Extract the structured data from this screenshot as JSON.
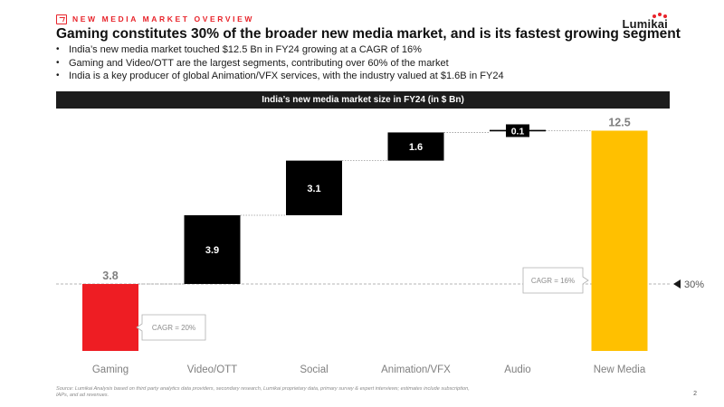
{
  "header": {
    "eyebrow": "NEW MEDIA MARKET OVERVIEW",
    "logo": "Lumikai",
    "title": "Gaming constitutes 30% of the broader new media market, and is its fastest growing segment",
    "bullets": [
      "India’s new media market touched $12.5 Bn in FY24 growing at a CAGR of 16%",
      "Gaming and Video/OTT are the largest segments, contributing over 60% of the market",
      "India is a key producer of global Animation/VFX services, with the industry valued at $1.6B in FY24"
    ]
  },
  "chart_data": {
    "type": "bar",
    "subtype": "waterfall",
    "title": "India’s new media market size in FY24 (in $ Bn)",
    "categories": [
      "Gaming",
      "Video/OTT",
      "Social",
      "Animation/VFX",
      "Audio",
      "New Media"
    ],
    "values": [
      3.8,
      3.9,
      3.1,
      1.6,
      0.1,
      12.5
    ],
    "labels": [
      "3.8",
      "3.9",
      "3.1",
      "1.6",
      "0.1",
      "12.5"
    ],
    "ylim": [
      0,
      13.5
    ],
    "grid": false,
    "colors": {
      "gaming": "#ee1d23",
      "segment": "#000000",
      "total": "#ffc000",
      "connector": "#999999",
      "label_muted": "#7f7f7f"
    },
    "annotations": [
      {
        "text": "CAGR = 20%",
        "category": "Gaming",
        "type": "callout"
      },
      {
        "text": "CAGR = 16%",
        "category": "New Media",
        "type": "callout"
      },
      {
        "text": "30%",
        "type": "share-marker",
        "level": 3.8
      }
    ]
  },
  "footer": {
    "source": "Source: Lumikai Analysis based on third party analytics data providers, secondary research, Lumikai proprietary data, primary survey & expert interviews; estimates include subscription, IAPs, and ad revenues.",
    "page_number": "2"
  }
}
